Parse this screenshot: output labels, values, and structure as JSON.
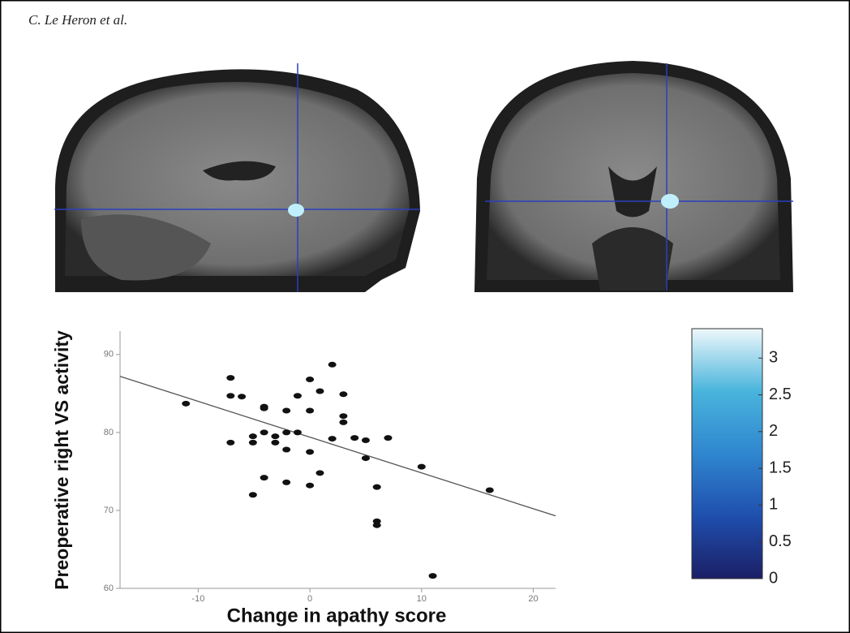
{
  "header": {
    "text": "C. Le Heron et al."
  },
  "chart_data": [
    {
      "type": "scatter",
      "x_label": "Change in apathy score",
      "y_label": "Preoperative right VS activity",
      "x": [
        -11.1,
        -7.1,
        -7.1,
        -6.1,
        -7.1,
        -5.1,
        -5.1,
        -5.1,
        -4.1,
        -4.1,
        -4.1,
        -4.1,
        -3.1,
        -3.1,
        -2.1,
        -2.1,
        -2.1,
        -2.1,
        -1.1,
        -1.1,
        0,
        0,
        0,
        0,
        0.9,
        0.9,
        2.0,
        2.0,
        3.0,
        3.0,
        3.0,
        4.0,
        5.0,
        5.0,
        6.0,
        6.0,
        6.0,
        7.0,
        10.0,
        11.0,
        16.1
      ],
      "values": [
        83.7,
        87.0,
        84.7,
        84.6,
        78.7,
        79.5,
        78.7,
        72.0,
        83.3,
        83.1,
        80.0,
        74.2,
        79.5,
        78.7,
        82.8,
        80.0,
        77.8,
        73.6,
        80.0,
        84.7,
        86.8,
        82.8,
        77.5,
        73.2,
        85.3,
        74.8,
        88.7,
        79.2,
        84.9,
        82.1,
        81.3,
        79.3,
        79.0,
        76.7,
        73.0,
        68.6,
        68.1,
        79.3,
        75.6,
        61.6,
        72.6
      ],
      "color": "#111111",
      "fit_line": {
        "x": [
          -17,
          22
        ],
        "y": [
          87.2,
          69.3
        ],
        "color": "#555555"
      },
      "xlim": [
        -17,
        22
      ],
      "ylim": [
        60,
        93
      ],
      "xticks": [
        -10,
        0,
        10,
        20
      ],
      "yticks": [
        60,
        70,
        80,
        90
      ]
    },
    {
      "type": "colorbar",
      "colors": [
        "#1b1f66",
        "#1f4fae",
        "#2f86cf",
        "#49b4dc",
        "#eef8fb"
      ],
      "ylim": [
        0,
        3.4
      ],
      "yticks": [
        0,
        0.5,
        1,
        1.5,
        2,
        2.5,
        3
      ]
    }
  ]
}
